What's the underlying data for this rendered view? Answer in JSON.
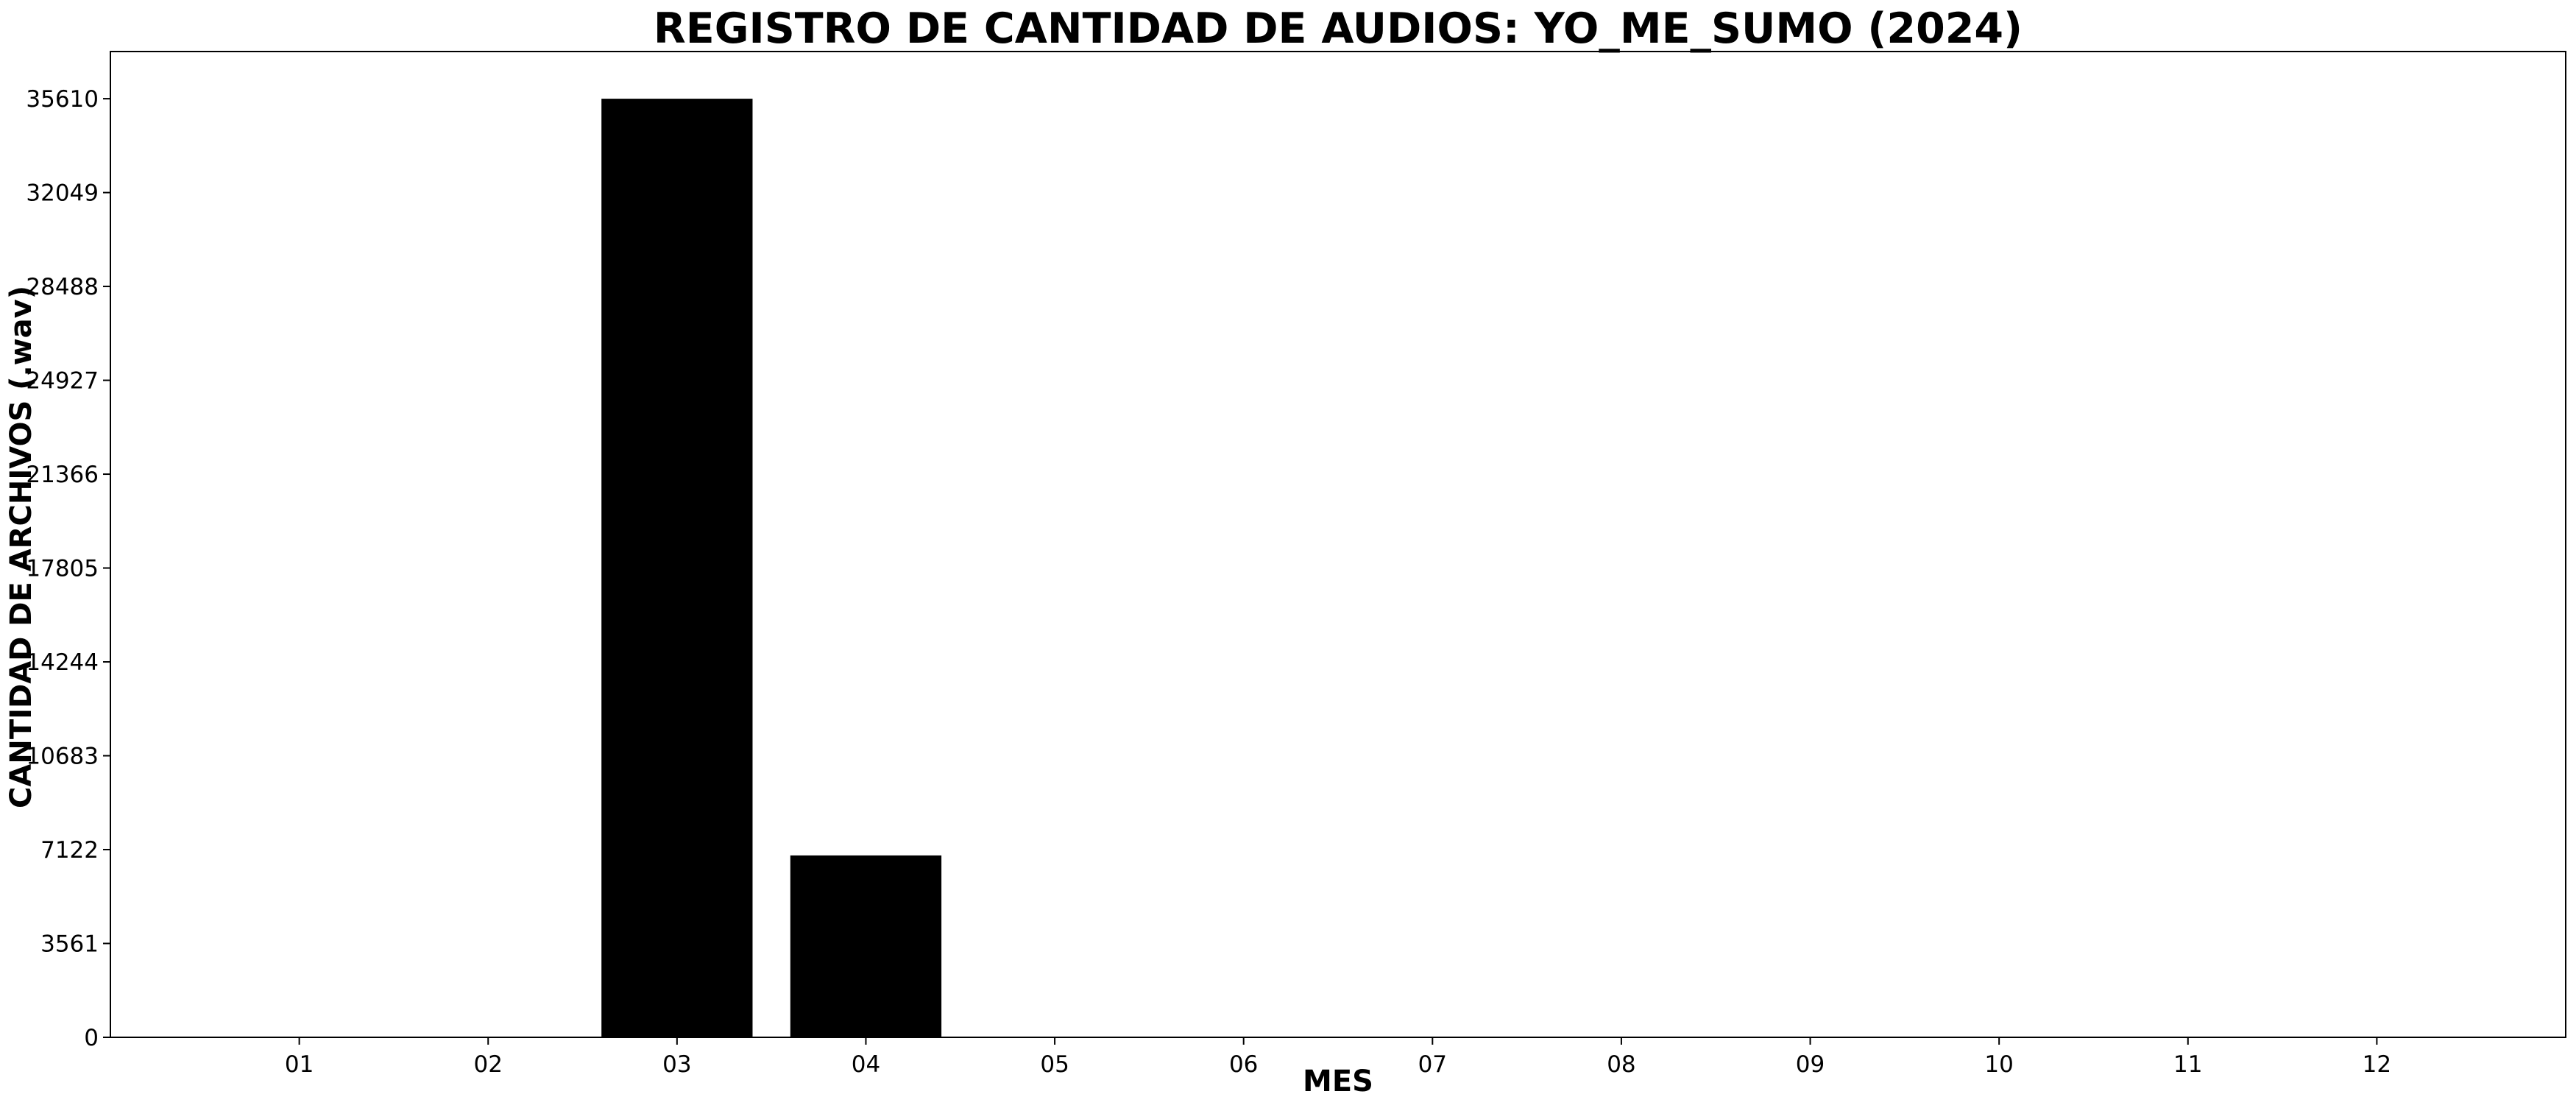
{
  "chart_data": {
    "type": "bar",
    "title": "REGISTRO DE CANTIDAD DE AUDIOS: YO_ME_SUMO (2024)",
    "xlabel": "MES",
    "ylabel": "CANTIDAD DE ARCHIVOS (.wav)",
    "categories": [
      "01",
      "02",
      "03",
      "04",
      "05",
      "06",
      "07",
      "08",
      "09",
      "10",
      "11",
      "12"
    ],
    "values": [
      0,
      0,
      35610,
      6900,
      0,
      0,
      0,
      0,
      0,
      0,
      0,
      0
    ],
    "yticks": [
      0,
      3561,
      7122,
      10683,
      14244,
      17805,
      21366,
      24927,
      28488,
      32049,
      35610
    ],
    "ylim": [
      0,
      37400
    ],
    "bar_color": "#000000",
    "grid": false,
    "legend": "none"
  }
}
